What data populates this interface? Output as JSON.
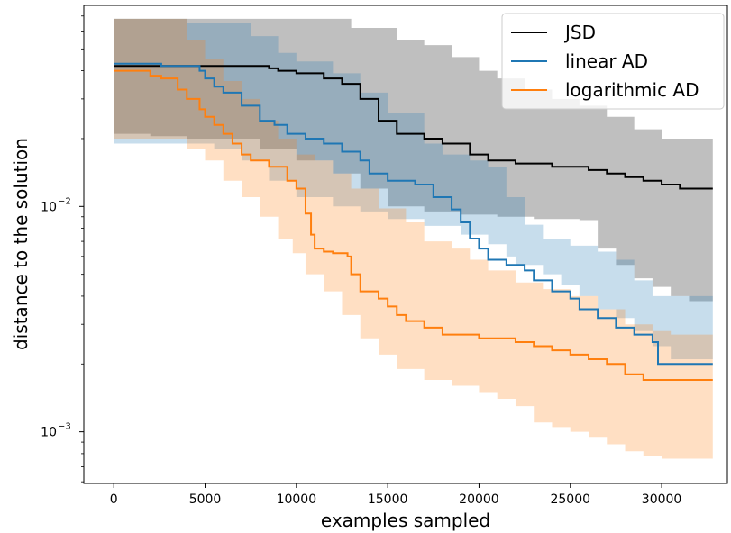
{
  "chart_data": {
    "type": "line",
    "title": "",
    "xlabel": "examples sampled",
    "ylabel": "distance to the solution",
    "xlim": [
      -1640,
      33600
    ],
    "ylim": [
      0.00059,
      0.078
    ],
    "yscale": "log",
    "xticks": [
      0,
      5000,
      10000,
      15000,
      20000,
      25000,
      30000
    ],
    "xtick_labels": [
      "0",
      "5000",
      "10000",
      "15000",
      "20000",
      "25000",
      "30000"
    ],
    "yticks": [
      0.001,
      0.01
    ],
    "ytick_labels": [
      {
        "base": "10",
        "exp": "−3"
      },
      {
        "base": "10",
        "exp": "−2"
      }
    ],
    "grid": false,
    "legend_position": "upper right",
    "series": [
      {
        "name": "JSD",
        "color": "#000000",
        "band_color": "#808080",
        "band_opacity": 0.5,
        "median": [
          [
            0,
            0.042
          ],
          [
            8000,
            0.042
          ],
          [
            8500,
            0.041
          ],
          [
            9000,
            0.04
          ],
          [
            10000,
            0.039
          ],
          [
            11500,
            0.037
          ],
          [
            12500,
            0.035
          ],
          [
            13500,
            0.03
          ],
          [
            14500,
            0.024
          ],
          [
            15500,
            0.021
          ],
          [
            17000,
            0.02
          ],
          [
            18000,
            0.019
          ],
          [
            19500,
            0.017
          ],
          [
            20500,
            0.016
          ],
          [
            22000,
            0.0155
          ],
          [
            24000,
            0.015
          ],
          [
            26000,
            0.0145
          ],
          [
            27000,
            0.014
          ],
          [
            28000,
            0.0135
          ],
          [
            29000,
            0.013
          ],
          [
            30000,
            0.0125
          ],
          [
            31000,
            0.012
          ],
          [
            32800,
            0.012
          ]
        ],
        "upper": [
          [
            0,
            0.068
          ],
          [
            10000,
            0.068
          ],
          [
            13000,
            0.062
          ],
          [
            15500,
            0.055
          ],
          [
            17000,
            0.052
          ],
          [
            18500,
            0.046
          ],
          [
            20000,
            0.04
          ],
          [
            21000,
            0.037
          ],
          [
            22500,
            0.033
          ],
          [
            24000,
            0.03
          ],
          [
            25500,
            0.028
          ],
          [
            27000,
            0.025
          ],
          [
            28500,
            0.022
          ],
          [
            30000,
            0.02
          ],
          [
            32800,
            0.019
          ]
        ],
        "lower": [
          [
            0,
            0.021
          ],
          [
            2000,
            0.0205
          ],
          [
            4000,
            0.02
          ],
          [
            7000,
            0.02
          ],
          [
            8000,
            0.018
          ],
          [
            10000,
            0.016
          ],
          [
            12000,
            0.014
          ],
          [
            13500,
            0.012
          ],
          [
            15000,
            0.01
          ],
          [
            17000,
            0.0095
          ],
          [
            19000,
            0.0092
          ],
          [
            21000,
            0.009
          ],
          [
            23000,
            0.0088
          ],
          [
            25500,
            0.0087
          ],
          [
            26500,
            0.0065
          ],
          [
            27500,
            0.0055
          ],
          [
            28500,
            0.0048
          ],
          [
            29500,
            0.0044
          ],
          [
            30500,
            0.004
          ],
          [
            31500,
            0.0038
          ],
          [
            32800,
            0.0037
          ]
        ]
      },
      {
        "name": "linear AD",
        "color": "#1f77b4",
        "band_color": "#1f77b4",
        "band_opacity": 0.25,
        "median": [
          [
            0,
            0.043
          ],
          [
            2000,
            0.043
          ],
          [
            2600,
            0.042
          ],
          [
            4000,
            0.042
          ],
          [
            4700,
            0.04
          ],
          [
            5000,
            0.037
          ],
          [
            5500,
            0.034
          ],
          [
            6000,
            0.032
          ],
          [
            7000,
            0.028
          ],
          [
            8000,
            0.024
          ],
          [
            8800,
            0.023
          ],
          [
            9500,
            0.021
          ],
          [
            10500,
            0.02
          ],
          [
            11500,
            0.019
          ],
          [
            12500,
            0.0175
          ],
          [
            13500,
            0.016
          ],
          [
            14000,
            0.014
          ],
          [
            15000,
            0.013
          ],
          [
            16500,
            0.0125
          ],
          [
            17500,
            0.011
          ],
          [
            18500,
            0.0097
          ],
          [
            19000,
            0.0085
          ],
          [
            19500,
            0.0072
          ],
          [
            20000,
            0.0065
          ],
          [
            20500,
            0.0058
          ],
          [
            21500,
            0.0055
          ],
          [
            22500,
            0.0052
          ],
          [
            23000,
            0.0047
          ],
          [
            24000,
            0.0042
          ],
          [
            25000,
            0.0039
          ],
          [
            25500,
            0.0035
          ],
          [
            26500,
            0.0032
          ],
          [
            27500,
            0.0029
          ],
          [
            28500,
            0.0027
          ],
          [
            29500,
            0.0025
          ],
          [
            29800,
            0.002
          ],
          [
            32800,
            0.002
          ]
        ],
        "upper": [
          [
            0,
            0.068
          ],
          [
            4000,
            0.065
          ],
          [
            7500,
            0.057
          ],
          [
            9000,
            0.048
          ],
          [
            10000,
            0.044
          ],
          [
            12000,
            0.039
          ],
          [
            13500,
            0.032
          ],
          [
            15000,
            0.026
          ],
          [
            17000,
            0.019
          ],
          [
            18000,
            0.017
          ],
          [
            19500,
            0.016
          ],
          [
            20500,
            0.015
          ],
          [
            21500,
            0.011
          ],
          [
            22500,
            0.0083
          ],
          [
            23500,
            0.0072
          ],
          [
            25000,
            0.0067
          ],
          [
            26500,
            0.0063
          ],
          [
            27500,
            0.0058
          ],
          [
            28500,
            0.0047
          ],
          [
            29500,
            0.004
          ],
          [
            32800,
            0.0036
          ]
        ],
        "lower": [
          [
            0,
            0.019
          ],
          [
            4000,
            0.019
          ],
          [
            5500,
            0.018
          ],
          [
            7000,
            0.016
          ],
          [
            8500,
            0.013
          ],
          [
            10000,
            0.011
          ],
          [
            12000,
            0.01
          ],
          [
            13500,
            0.0095
          ],
          [
            15000,
            0.0088
          ],
          [
            17000,
            0.0082
          ],
          [
            19000,
            0.0075
          ],
          [
            20500,
            0.0068
          ],
          [
            21500,
            0.006
          ],
          [
            22000,
            0.0055
          ],
          [
            23500,
            0.005
          ],
          [
            24500,
            0.0045
          ],
          [
            25500,
            0.004
          ],
          [
            26500,
            0.0035
          ],
          [
            27500,
            0.0032
          ],
          [
            28500,
            0.0028
          ],
          [
            29500,
            0.0024
          ],
          [
            30500,
            0.0021
          ],
          [
            32800,
            0.002
          ]
        ]
      },
      {
        "name": "logarithmic AD",
        "color": "#ff7f0e",
        "band_color": "#ff7f0e",
        "band_opacity": 0.25,
        "median": [
          [
            0,
            0.04
          ],
          [
            1500,
            0.04
          ],
          [
            2000,
            0.038
          ],
          [
            2600,
            0.037
          ],
          [
            3500,
            0.033
          ],
          [
            4000,
            0.03
          ],
          [
            4700,
            0.027
          ],
          [
            5000,
            0.025
          ],
          [
            5500,
            0.023
          ],
          [
            6000,
            0.021
          ],
          [
            6500,
            0.019
          ],
          [
            7000,
            0.017
          ],
          [
            7500,
            0.016
          ],
          [
            8500,
            0.015
          ],
          [
            9500,
            0.013
          ],
          [
            10000,
            0.012
          ],
          [
            10500,
            0.0093
          ],
          [
            10800,
            0.0075
          ],
          [
            11000,
            0.0065
          ],
          [
            11500,
            0.0063
          ],
          [
            12000,
            0.0062
          ],
          [
            12800,
            0.006
          ],
          [
            13000,
            0.005
          ],
          [
            13500,
            0.0042
          ],
          [
            14500,
            0.0039
          ],
          [
            15000,
            0.0036
          ],
          [
            15500,
            0.0033
          ],
          [
            16000,
            0.0031
          ],
          [
            17000,
            0.0029
          ],
          [
            18000,
            0.0027
          ],
          [
            19000,
            0.0027
          ],
          [
            20000,
            0.0026
          ],
          [
            21500,
            0.0026
          ],
          [
            22000,
            0.0025
          ],
          [
            23000,
            0.0024
          ],
          [
            24000,
            0.0023
          ],
          [
            25000,
            0.0022
          ],
          [
            26000,
            0.0021
          ],
          [
            27000,
            0.002
          ],
          [
            28000,
            0.0018
          ],
          [
            29000,
            0.0017
          ],
          [
            32800,
            0.0017
          ]
        ],
        "upper": [
          [
            0,
            0.068
          ],
          [
            2500,
            0.068
          ],
          [
            4000,
            0.055
          ],
          [
            5000,
            0.045
          ],
          [
            6000,
            0.036
          ],
          [
            7000,
            0.03
          ],
          [
            8000,
            0.024
          ],
          [
            9000,
            0.02
          ],
          [
            10000,
            0.017
          ],
          [
            11000,
            0.016
          ],
          [
            12000,
            0.014
          ],
          [
            13000,
            0.012
          ],
          [
            14500,
            0.0098
          ],
          [
            16000,
            0.0085
          ],
          [
            17000,
            0.007
          ],
          [
            18500,
            0.0065
          ],
          [
            19500,
            0.0058
          ],
          [
            20500,
            0.0052
          ],
          [
            22000,
            0.0046
          ],
          [
            23500,
            0.0043
          ],
          [
            25000,
            0.004
          ],
          [
            26500,
            0.0035
          ],
          [
            28000,
            0.003
          ],
          [
            29500,
            0.0028
          ],
          [
            30500,
            0.0027
          ],
          [
            32800,
            0.0027
          ]
        ],
        "lower": [
          [
            0,
            0.02
          ],
          [
            3500,
            0.02
          ],
          [
            4000,
            0.018
          ],
          [
            5000,
            0.016
          ],
          [
            6000,
            0.013
          ],
          [
            7000,
            0.011
          ],
          [
            8000,
            0.009
          ],
          [
            9000,
            0.0072
          ],
          [
            9800,
            0.0062
          ],
          [
            10500,
            0.005
          ],
          [
            11500,
            0.0042
          ],
          [
            12500,
            0.0033
          ],
          [
            13500,
            0.0026
          ],
          [
            14500,
            0.0022
          ],
          [
            15500,
            0.0019
          ],
          [
            17000,
            0.0017
          ],
          [
            18500,
            0.0016
          ],
          [
            20000,
            0.0015
          ],
          [
            21000,
            0.0014
          ],
          [
            22000,
            0.0013
          ],
          [
            23000,
            0.0011
          ],
          [
            24000,
            0.00105
          ],
          [
            25000,
            0.001
          ],
          [
            26000,
            0.00095
          ],
          [
            27000,
            0.00088
          ],
          [
            28000,
            0.00082
          ],
          [
            29000,
            0.00078
          ],
          [
            30000,
            0.00076
          ],
          [
            32800,
            0.00075
          ]
        ]
      }
    ]
  }
}
